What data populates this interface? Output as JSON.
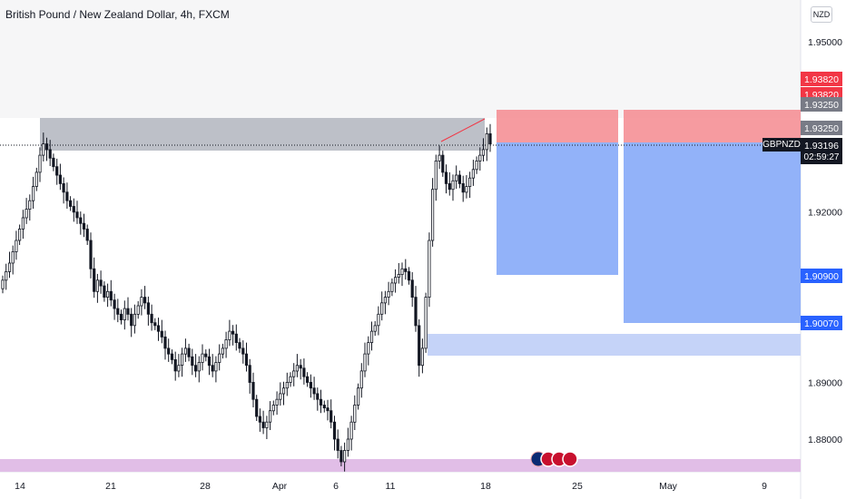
{
  "header": {
    "title": "British Pound / New Zealand Dollar, 4h, FXCM",
    "currency_button": "NZD"
  },
  "chart_data": {
    "type": "candlestick",
    "symbol": "GBPNZD",
    "interval": "4h",
    "source": "FXCM",
    "y_axis": {
      "ticks": [
        1.95,
        1.92,
        1.89,
        1.88
      ],
      "tick_labels": [
        "1.95000",
        "1.92000",
        "1.89000",
        "1.88000"
      ],
      "range": [
        1.874,
        1.958
      ]
    },
    "x_axis": {
      "tick_labels": [
        "14",
        "21",
        "28",
        "Apr",
        "6",
        "11",
        "18",
        "25",
        "May",
        "9"
      ]
    },
    "price_badges": [
      {
        "label": "1.93820",
        "color": "#f23645"
      },
      {
        "label": "1.93820",
        "color": "#f23645"
      },
      {
        "label": "1.93250",
        "color": "#787b86"
      },
      {
        "label": "1.93250",
        "color": "#787b86"
      },
      {
        "label": "1.93196",
        "color": "#131722"
      },
      {
        "label": "1.90900",
        "color": "#2962ff"
      },
      {
        "label": "1.90070",
        "color": "#2962ff"
      }
    ],
    "last_price": {
      "symbol": "GBPNZD",
      "value": "1.93196",
      "countdown": "02:59:27"
    },
    "zones": {
      "resistance": [
        1.929,
        1.9342
      ],
      "demand": [
        1.8945,
        1.8985
      ],
      "support": [
        1.8742,
        1.8762
      ]
    },
    "positions": [
      {
        "type": "short",
        "entry": 1.9325,
        "stop": 1.9382,
        "target": 1.909
      },
      {
        "type": "short",
        "entry": 1.9325,
        "stop": 1.9382,
        "target": 1.9007
      }
    ],
    "colors": {
      "up": "#26a69a",
      "down": "#ef5350",
      "candle": "#131722",
      "stop_zone": "#f4898f",
      "target_zone": "#7fa4f8"
    },
    "candles_close": [
      1.908,
      1.9095,
      1.911,
      1.913,
      1.915,
      1.917,
      1.919,
      1.9205,
      1.922,
      1.9245,
      1.927,
      1.93,
      1.932,
      1.931,
      1.9295,
      1.928,
      1.9265,
      1.925,
      1.9235,
      1.922,
      1.921,
      1.92,
      1.919,
      1.918,
      1.917,
      1.915,
      1.91,
      1.906,
      1.908,
      1.907,
      1.905,
      1.906,
      1.9045,
      1.903,
      1.902,
      1.901,
      1.903,
      1.902,
      1.9,
      1.902,
      1.9035,
      1.905,
      1.904,
      1.902,
      1.9005,
      1.9,
      1.899,
      1.898,
      1.896,
      1.895,
      1.894,
      1.892,
      1.893,
      1.895,
      1.896,
      1.8945,
      1.893,
      1.892,
      1.8935,
      1.895,
      1.8945,
      1.893,
      1.892,
      1.8935,
      1.895,
      1.896,
      1.8975,
      1.899,
      1.8985,
      1.897,
      1.896,
      1.895,
      1.893,
      1.89,
      1.887,
      1.884,
      1.883,
      1.882,
      1.883,
      1.885,
      1.886,
      1.887,
      1.888,
      1.889,
      1.89,
      1.891,
      1.892,
      1.893,
      1.8925,
      1.891,
      1.89,
      1.889,
      1.888,
      1.887,
      1.886,
      1.8855,
      1.885,
      1.883,
      1.88,
      1.878,
      1.876,
      1.878,
      1.88,
      1.883,
      1.886,
      1.889,
      1.892,
      1.895,
      1.897,
      1.899,
      1.9,
      1.902,
      1.904,
      1.905,
      1.906,
      1.9075,
      1.9085,
      1.909,
      1.91,
      1.9095,
      1.908,
      1.905,
      1.9,
      1.893,
      1.896,
      1.905,
      1.915,
      1.924,
      1.929,
      1.93,
      1.927,
      1.925,
      1.924,
      1.9255,
      1.9265,
      1.925,
      1.9235,
      1.9245,
      1.926,
      1.9275,
      1.929,
      1.93,
      1.931,
      1.9338,
      1.932
    ]
  }
}
